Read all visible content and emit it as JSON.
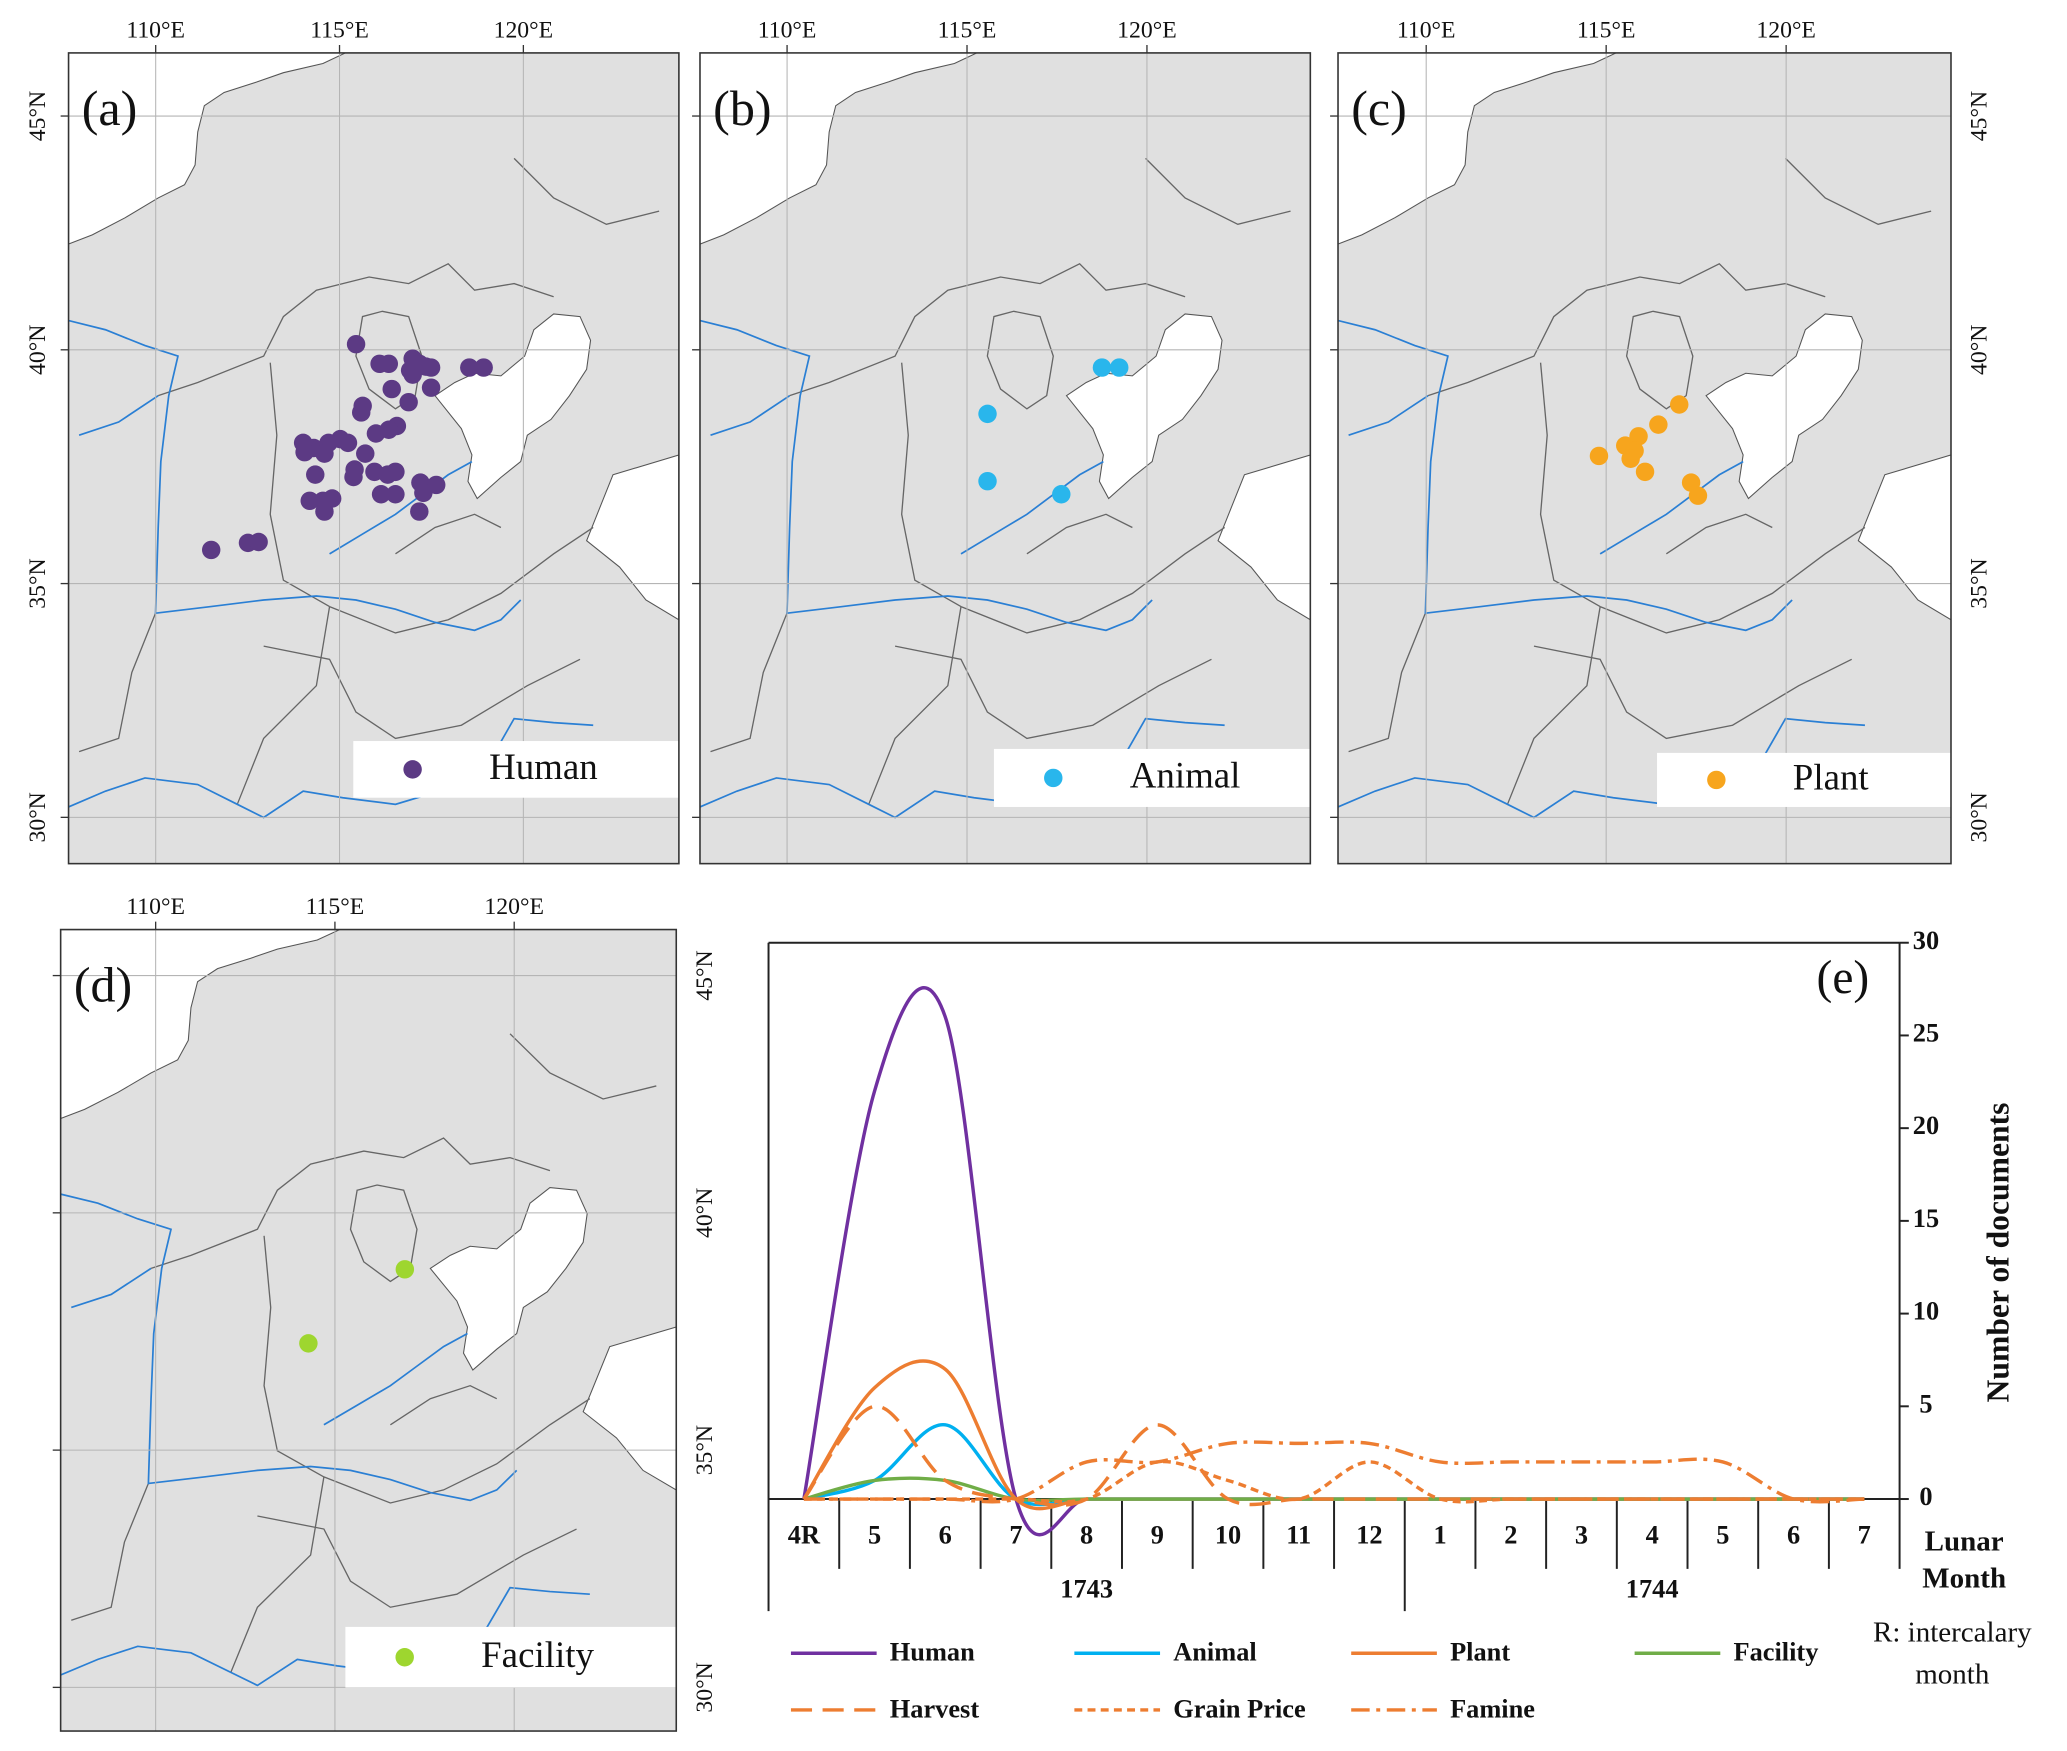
{
  "chart_data": [
    {
      "type": "scatter",
      "label": "(a)",
      "legend": "lower right",
      "xlim": [
        107.63,
        124.23
      ],
      "ylim": [
        29.01,
        46.35
      ],
      "xticks": [
        {
          "value": 110,
          "label": "110°E"
        },
        {
          "value": 115,
          "label": "115°E"
        },
        {
          "value": 120,
          "label": "120°E"
        }
      ],
      "yticks": [
        {
          "value": 30,
          "label": "30°N"
        },
        {
          "value": 35,
          "label": "35°N"
        },
        {
          "value": 40,
          "label": "40°N"
        },
        {
          "value": 45,
          "label": "45°N"
        }
      ],
      "series": [
        {
          "name": "Human",
          "color": "#5c3a84",
          "x": [
            115.45,
            116.09,
            116.34,
            116.99,
            117.17,
            117.35,
            116.99,
            116.92,
            117.49,
            118.53,
            118.92,
            116.42,
            117.49,
            115.63,
            116.88,
            115.59,
            116.56,
            116.34,
            115.99,
            115.23,
            115.02,
            114.7,
            114.3,
            114.01,
            114.05,
            114.59,
            115.7,
            115.41,
            115.95,
            116.31,
            116.52,
            114.34,
            115.38,
            117.2,
            117.63,
            116.13,
            116.52,
            117.28,
            114.55,
            114.19,
            114.8,
            114.59,
            117.17,
            111.51,
            112.51,
            112.8
          ],
          "y": [
            40.12,
            39.7,
            39.7,
            39.81,
            39.7,
            39.64,
            39.47,
            39.56,
            39.62,
            39.62,
            39.62,
            39.16,
            39.19,
            38.8,
            38.88,
            38.66,
            38.37,
            38.29,
            38.21,
            38.01,
            38.09,
            38.01,
            37.9,
            38.01,
            37.81,
            37.78,
            37.78,
            37.44,
            37.39,
            37.33,
            37.39,
            37.33,
            37.28,
            37.16,
            37.11,
            36.91,
            36.91,
            36.94,
            36.77,
            36.77,
            36.82,
            36.54,
            36.54,
            35.72,
            35.87,
            35.89
          ]
        }
      ]
    },
    {
      "type": "scatter",
      "label": "(b)",
      "legend": "lower right",
      "xlim": [
        107.58,
        124.54
      ],
      "ylim": [
        29.01,
        46.35
      ],
      "xticks": [
        {
          "value": 110,
          "label": "110°E"
        },
        {
          "value": 115,
          "label": "115°E"
        },
        {
          "value": 120,
          "label": "120°E"
        }
      ],
      "yticks": [
        30,
        35,
        40,
        45
      ],
      "series": [
        {
          "name": "Animal",
          "color": "#29b6ec",
          "x": [
            115.57,
            115.57,
            117.62,
            118.75,
            119.23
          ],
          "y": [
            38.63,
            37.19,
            36.91,
            39.62,
            39.62
          ]
        }
      ]
    },
    {
      "type": "scatter",
      "label": "(c)",
      "legend": "lower right",
      "xlim": [
        107.55,
        124.58
      ],
      "ylim": [
        29.01,
        46.35
      ],
      "xticks": [
        {
          "value": 110,
          "label": "110°E"
        },
        {
          "value": 115,
          "label": "115°E"
        },
        {
          "value": 120,
          "label": "120°E"
        }
      ],
      "yticks": [
        {
          "value": 30,
          "label": "30°N"
        },
        {
          "value": 35,
          "label": "35°N"
        },
        {
          "value": 40,
          "label": "40°N"
        },
        {
          "value": 45,
          "label": "45°N"
        }
      ],
      "series": [
        {
          "name": "Plant",
          "color": "#f7a51d",
          "x": [
            117.03,
            116.45,
            115.9,
            115.53,
            115.79,
            114.8,
            115.68,
            116.08,
            117.36,
            117.55
          ],
          "y": [
            38.83,
            38.4,
            38.15,
            37.95,
            37.84,
            37.73,
            37.67,
            37.39,
            37.16,
            36.88
          ]
        }
      ]
    },
    {
      "type": "scatter",
      "label": "(d)",
      "legend": "lower right",
      "xlim": [
        107.35,
        124.52
      ],
      "ylim": [
        29.08,
        45.97
      ],
      "xticks": [
        {
          "value": 110,
          "label": "110°E"
        },
        {
          "value": 115,
          "label": "115°E"
        },
        {
          "value": 120,
          "label": "120°E"
        }
      ],
      "yticks": [
        {
          "value": 30,
          "label": "30°N"
        },
        {
          "value": 35,
          "label": "35°N"
        },
        {
          "value": 40,
          "label": "40°N"
        },
        {
          "value": 45,
          "label": "45°N"
        }
      ],
      "series": [
        {
          "name": "Facility",
          "color": "#9ed62f",
          "x": [
            116.95,
            114.26
          ],
          "y": [
            38.81,
            37.25
          ]
        }
      ]
    },
    {
      "type": "line",
      "label": "(e)",
      "ylabel": "Number of documents",
      "xlabel": "Lunar Month",
      "note": "R: intercalary month",
      "categories": [
        "4R",
        "5",
        "6",
        "7",
        "8",
        "9",
        "10",
        "11",
        "12",
        "1",
        "2",
        "3",
        "4",
        "5",
        "6",
        "7"
      ],
      "groups": [
        "1743",
        "1744"
      ],
      "ylim": [
        0,
        30
      ],
      "yticks": [
        0,
        5,
        10,
        15,
        20,
        25,
        30
      ],
      "series": [
        {
          "name": "Human",
          "color": "#7030a0",
          "linestyle": "solid",
          "values": [
            0,
            22,
            26,
            0,
            0,
            0,
            0,
            0,
            0,
            0,
            0,
            0,
            0,
            0,
            0,
            0
          ]
        },
        {
          "name": "Animal",
          "color": "#00b0f0",
          "linestyle": "solid",
          "values": [
            0,
            1,
            4,
            0,
            0,
            0,
            0,
            0,
            0,
            0,
            0,
            0,
            0,
            0,
            0,
            0
          ]
        },
        {
          "name": "Plant",
          "color": "#ed7d31",
          "linestyle": "solid",
          "values": [
            0,
            6,
            7,
            0,
            0,
            0,
            0,
            0,
            0,
            0,
            0,
            0,
            0,
            0,
            0,
            0
          ]
        },
        {
          "name": "Facility",
          "color": "#70ad47",
          "linestyle": "solid",
          "values": [
            0,
            1,
            1,
            0,
            0,
            0,
            0,
            0,
            0,
            0,
            0,
            0,
            0,
            0,
            0,
            0
          ]
        },
        {
          "name": "Harvest",
          "color": "#ed7d31",
          "linestyle": "dashed",
          "values": [
            0,
            5,
            1,
            0,
            0,
            4,
            0,
            0,
            0,
            0,
            0,
            0,
            0,
            0,
            0,
            0
          ]
        },
        {
          "name": "Grain Price",
          "color": "#ed7d31",
          "linestyle": "dotted",
          "values": [
            0,
            0,
            0,
            0,
            0,
            2,
            1,
            0,
            2,
            0,
            0,
            0,
            0,
            0,
            0,
            0
          ]
        },
        {
          "name": "Famine",
          "color": "#ed7d31",
          "linestyle": "dashdot",
          "values": [
            0,
            0,
            0,
            0,
            2,
            2,
            3,
            3,
            3,
            2,
            2,
            2,
            2,
            2,
            0,
            0
          ]
        }
      ]
    }
  ]
}
